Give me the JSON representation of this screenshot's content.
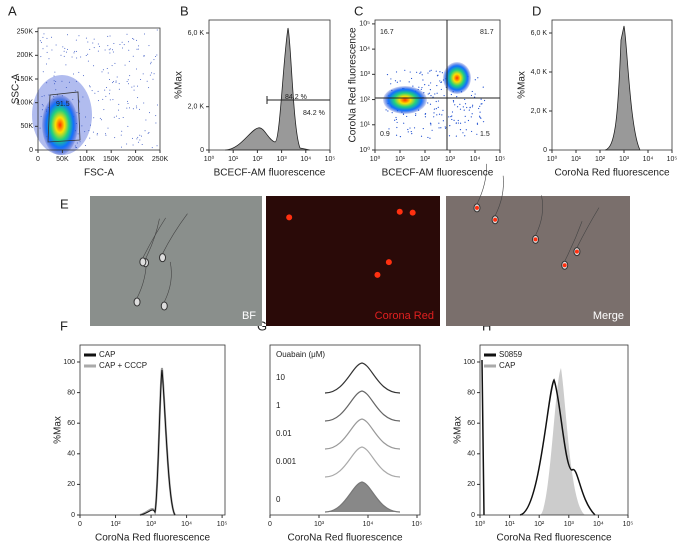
{
  "panels": [
    {
      "label": "A",
      "x_label": "FSC-A",
      "y_label": "SSC-A",
      "x_ticks": [
        "0",
        "50K",
        "100K",
        "150K",
        "200K",
        "250K"
      ],
      "y_ticks": [
        "0",
        "50K",
        "100K",
        "150K",
        "200K",
        "250K"
      ],
      "annotations": [
        "91.5"
      ]
    },
    {
      "label": "B",
      "x_label": "BCECF-AM fluorescence",
      "y_label": "%Max",
      "x_ticks": [
        "10⁰",
        "10¹",
        "10²",
        "10³",
        "10⁴",
        "10⁵"
      ],
      "y_ticks": [
        "0",
        "2,0 K",
        "6,0 K"
      ],
      "annotations": [
        "84.2 %",
        "84.2 %"
      ]
    },
    {
      "label": "C",
      "x_label": "BCECF-AM fluorescence",
      "y_label": "CoroNa Red fluorescence",
      "x_ticks": [
        "10⁰",
        "10¹",
        "10²",
        "10³",
        "10⁴",
        "10⁵"
      ],
      "y_ticks": [
        "10⁰",
        "10¹",
        "10²",
        "10³",
        "10⁴",
        "10⁵"
      ],
      "annotations": [
        "16.7",
        "81.7",
        "0.9",
        "1.5"
      ]
    },
    {
      "label": "D",
      "x_label": "CoroNa Red fluorescence",
      "y_label": "%Max",
      "x_ticks": [
        "10⁰",
        "10¹",
        "10²",
        "10³",
        "10⁴",
        "10⁵"
      ],
      "y_ticks": [
        "0",
        "2,0 K",
        "4,0 K",
        "6,0 K"
      ],
      "annotations": []
    },
    {
      "label": "F",
      "x_label": "CoroNa Red fluorescence",
      "y_label": "%Max",
      "x_ticks": [
        "0",
        "10²",
        "10³",
        "10⁴",
        "10⁵"
      ],
      "y_ticks": [
        "0",
        "20",
        "40",
        "60",
        "80",
        "100"
      ],
      "annotations": [],
      "legend": [
        "CAP",
        "CAP + CCCP"
      ]
    },
    {
      "label": "G",
      "x_label": "CoroNa Red fluorescence",
      "x_ticks": [
        "0",
        "10³",
        "10⁴",
        "10⁵"
      ],
      "y_ticks": [],
      "annotations": [],
      "rows_title": "Ouabain (μM)",
      "rows": [
        "10",
        "1",
        "0.01",
        "0.001",
        "0"
      ]
    },
    {
      "label": "H",
      "x_label": "CoroNa Red fluorescence",
      "y_label": "%Max",
      "x_ticks": [
        "10⁰",
        "10¹",
        "10²",
        "10³",
        "10⁴",
        "10⁵"
      ],
      "y_ticks": [
        "0",
        "20",
        "40",
        "60",
        "80",
        "100"
      ],
      "annotations": [],
      "legend": [
        "S0859",
        "CAP"
      ]
    }
  ],
  "images": {
    "label": "E",
    "captions": [
      "BF",
      "Corona Red",
      "Merge"
    ]
  }
}
